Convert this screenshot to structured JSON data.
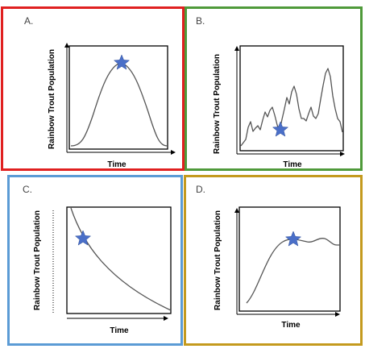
{
  "colors": {
    "panel_a_border": "#e02020",
    "panel_b_border": "#4f9a3a",
    "panel_c_border": "#5b9bd5",
    "panel_d_border": "#c49a1e",
    "star": "#4a6fc8",
    "curve": "#555555"
  },
  "panels": [
    {
      "letter": "A.",
      "curve_shape": "bell",
      "ylabel": "Rainbow Trout Population",
      "xlabel": "Time",
      "marker": "star-icon"
    },
    {
      "letter": "B.",
      "curve_shape": "fluctuating",
      "ylabel": "Rainbow Trout Population",
      "xlabel": "Time",
      "marker": "star-icon"
    },
    {
      "letter": "C.",
      "curve_shape": "exponential-decay",
      "ylabel": "Rainbow Trout Population",
      "xlabel": "Time",
      "marker": "star-icon"
    },
    {
      "letter": "D.",
      "curve_shape": "logistic-growth",
      "ylabel": "Rainbow Trout Population",
      "xlabel": "Time",
      "marker": "star-icon"
    }
  ]
}
